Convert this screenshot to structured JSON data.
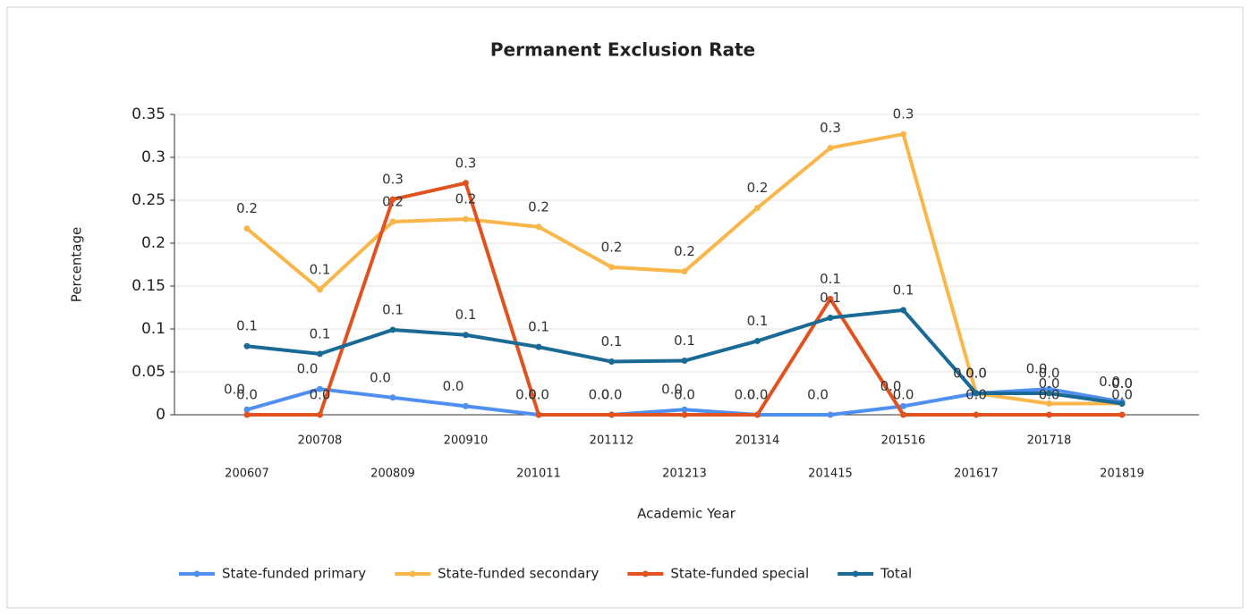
{
  "chart_data": {
    "type": "line",
    "title": "Permanent Exclusion Rate",
    "x_label": "Academic Year",
    "y_label": "Percentage",
    "categories": [
      "200607",
      "200708",
      "200809",
      "200910",
      "201011",
      "201112",
      "201213",
      "201314",
      "201415",
      "201516",
      "201617",
      "201718",
      "201819"
    ],
    "series": [
      {
        "name": "State-funded primary",
        "color": "#4f8ff0",
        "values": [
          0.006,
          0.03,
          0.02,
          0.01,
          0.0,
          0.0,
          0.006,
          0.0,
          0.0,
          0.01,
          0.025,
          0.03,
          0.015
        ],
        "value_labels": [
          "0.0",
          "0.0",
          "0.0",
          "0.0",
          "0.0",
          "0.0",
          "0.0",
          "0.0",
          "0.0",
          "0.0",
          "0.0",
          "0.0",
          "0.0"
        ]
      },
      {
        "name": "State-funded secondary",
        "color": "#f9b64a",
        "values": [
          0.217,
          0.146,
          0.225,
          0.228,
          0.219,
          0.172,
          0.167,
          0.241,
          0.311,
          0.327,
          0.025,
          0.013,
          0.013
        ],
        "value_labels": [
          "0.2",
          "0.1",
          "0.2",
          "0.2",
          "0.2",
          "0.2",
          "0.2",
          "0.2",
          "0.3",
          "0.3",
          "0.0",
          "0.0",
          "0.0"
        ]
      },
      {
        "name": "State-funded special",
        "color": "#e05320",
        "values": [
          0.0,
          0.0,
          0.251,
          0.27,
          0.0,
          0.0,
          0.0,
          0.0,
          0.135,
          0.0,
          0.0,
          0.0,
          0.0
        ],
        "value_labels": [
          "0.0",
          "0.0",
          "0.3",
          "0.3",
          "0.0",
          "0.0",
          "0.0",
          "0.0",
          "0.1",
          "0.0",
          "0.0",
          "0.0",
          "0.0"
        ]
      },
      {
        "name": "Total",
        "color": "#1a6a96",
        "values": [
          0.08,
          0.071,
          0.099,
          0.093,
          0.079,
          0.062,
          0.063,
          0.086,
          0.113,
          0.122,
          0.025,
          0.025,
          0.013
        ],
        "value_labels": [
          "0.1",
          "0.1",
          "0.1",
          "0.1",
          "0.1",
          "0.1",
          "0.1",
          "0.1",
          "0.1",
          "0.1",
          "0.0",
          "0.0",
          "0.0"
        ]
      }
    ],
    "ylim": [
      0,
      0.35
    ],
    "yticks": [
      0,
      0.05,
      0.1,
      0.15,
      0.2,
      0.25,
      0.3,
      0.35
    ],
    "grid": true,
    "legend": "bottom"
  }
}
